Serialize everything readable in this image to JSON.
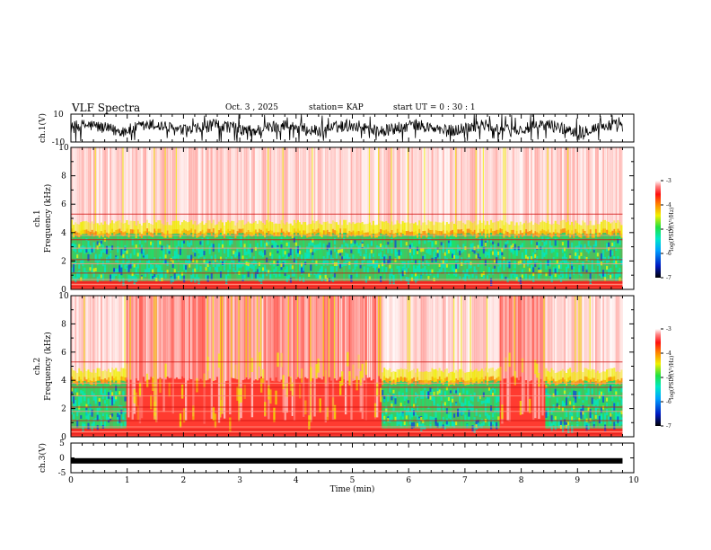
{
  "header": {
    "title": "VLF Spectra",
    "date": "Oct. 3  , 2025",
    "station": "station= KAP",
    "start": "start  UT  =   0  : 30 : 1"
  },
  "chart_data": [
    {
      "type": "line",
      "name": "ch1-waveform",
      "title": "",
      "ylabel": "ch.1(V)",
      "ylim": [
        -10,
        10
      ],
      "xlim": [
        0,
        10
      ],
      "yticks": [
        "10",
        "-10"
      ],
      "description_series": "noisy waveform"
    },
    {
      "type": "heatmap",
      "name": "ch1-spectrogram",
      "ylabel_top": "ch.1",
      "ylabel": "Frequency  (kHz)",
      "ylim": [
        0,
        10
      ],
      "xlim": [
        0,
        10
      ],
      "yticks": [
        "0",
        "2",
        "4",
        "6",
        "8",
        "10"
      ],
      "colorbar": {
        "label": "log(PSD)(V²/Hz)",
        "ticks": [
          "-3",
          "-4",
          "-5",
          "-6",
          "-7"
        ],
        "range": [
          -7,
          -3
        ]
      },
      "quiet_intervals_min": [
        [
          0,
          9.8
        ]
      ],
      "band_edge_khz": 3.8
    },
    {
      "type": "heatmap",
      "name": "ch2-spectrogram",
      "ylabel_top": "ch.2",
      "ylabel": "Frequency  (kHz)",
      "ylim": [
        0,
        10
      ],
      "xlim": [
        0,
        10
      ],
      "yticks": [
        "0",
        "2",
        "4",
        "6",
        "8",
        "10"
      ],
      "colorbar": {
        "label": "log(PSD)(V²/Hz)",
        "ticks": [
          "-3",
          "-4",
          "-5",
          "-6",
          "-7"
        ],
        "range": [
          -7,
          -3
        ]
      },
      "quiet_intervals_min": [
        [
          0,
          0.95
        ],
        [
          5.5,
          7.6
        ],
        [
          8.4,
          9.8
        ]
      ],
      "band_edge_khz": 3.8
    },
    {
      "type": "line",
      "name": "ch3-waveform",
      "ylabel": "ch.3(V)",
      "ylim": [
        -5,
        5
      ],
      "xlim": [
        0,
        10
      ],
      "yticks": [
        "5",
        "0",
        "-5"
      ],
      "level_v": -1,
      "data_end_min": 9.8
    }
  ],
  "xaxis": {
    "label": "Time  (min)",
    "ticks": [
      "0",
      "1",
      "2",
      "3",
      "4",
      "5",
      "6",
      "7",
      "8",
      "9",
      "10"
    ]
  },
  "colors": {
    "bg_red": "#ff3b30",
    "white": "#ffffff",
    "yellow": "#f0ee00",
    "green": "#1fe06a",
    "cyan": "#00e8c8",
    "blue": "#1040e0"
  }
}
